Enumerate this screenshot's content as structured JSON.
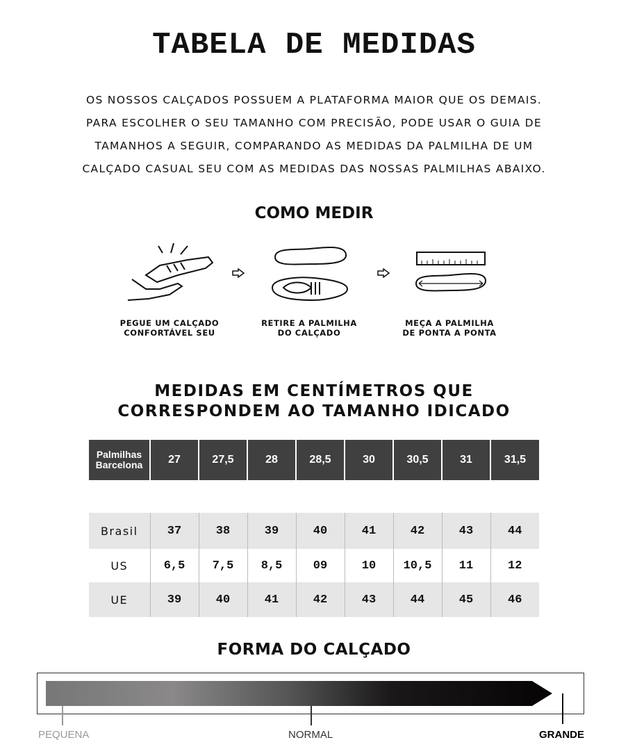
{
  "title": "TABELA DE MEDIDAS",
  "intro": [
    "OS NOSSOS CALÇADOS POSSUEM A PLATAFORMA MAIOR QUE OS DEMAIS.",
    "PARA ESCOLHER O SEU TAMANHO COM PRECISÃO, PODE USAR O GUIA DE",
    "TAMANHOS A SEGUIR, COMPARANDO AS MEDIDAS DA PALMILHA DE UM",
    "CALÇADO CASUAL SEU COM AS MEDIDAS DAS NOSSAS PALMILHAS ABAIXO."
  ],
  "how_to": {
    "title": "COMO MEDIR",
    "steps": [
      {
        "icon": "hand-holding-shoe-icon",
        "line1": "PEGUE UM CALÇADO",
        "line2": "CONFORTÁVEL SEU"
      },
      {
        "icon": "insole-removal-icon",
        "line1": "RETIRE A PALMILHA",
        "line2": "DO CALÇADO"
      },
      {
        "icon": "ruler-insole-icon",
        "line1": "MEÇA A PALMILHA",
        "line2": "DE PONTA A PONTA"
      }
    ]
  },
  "table_title": [
    "MEDIDAS EM CENTÍMETROS QUE",
    "CORRESPONDEM AO TAMANHO IDICADO"
  ],
  "header": {
    "label1": "Palmilhas",
    "label2": "Barcelona",
    "values": [
      "27",
      "27,5",
      "28",
      "28,5",
      "30",
      "30,5",
      "31",
      "31,5"
    ]
  },
  "rows": [
    {
      "label": "Brasil",
      "values": [
        "37",
        "38",
        "39",
        "40",
        "41",
        "42",
        "43",
        "44"
      ]
    },
    {
      "label": "US",
      "values": [
        "6,5",
        "7,5",
        "8,5",
        "09",
        "10",
        "10,5",
        "11",
        "12"
      ]
    },
    {
      "label": "UE",
      "values": [
        "39",
        "40",
        "41",
        "42",
        "43",
        "44",
        "45",
        "46"
      ]
    }
  ],
  "shape": {
    "title": "FORMA DO CALÇADO",
    "labels": [
      "PEQUENA",
      "NORMAL",
      "GRANDE"
    ],
    "selected": "GRANDE"
  }
}
